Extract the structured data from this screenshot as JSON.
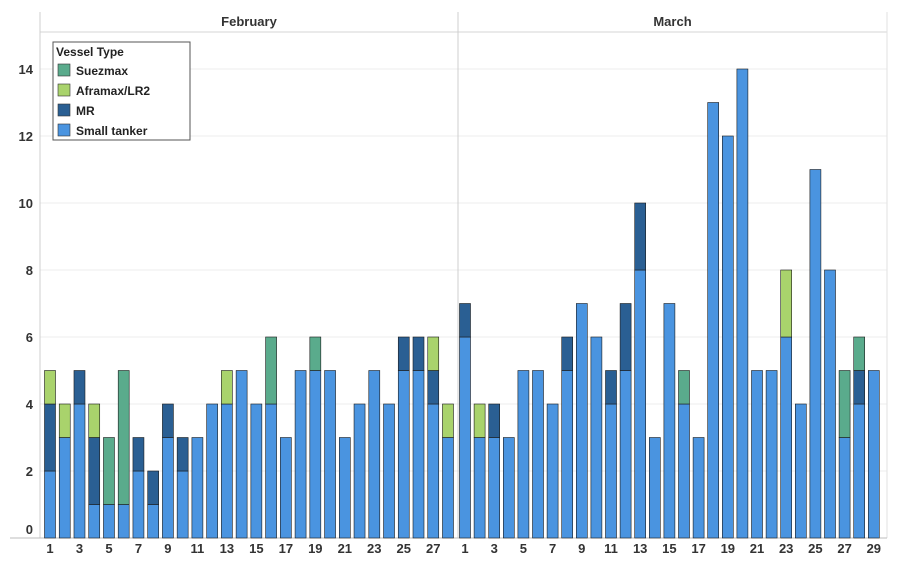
{
  "chart_data": {
    "type": "bar",
    "stacked": true,
    "ylim": [
      0,
      15
    ],
    "yticks": [
      0,
      2,
      4,
      6,
      8,
      10,
      12,
      14
    ],
    "grid": true,
    "legend": {
      "title": "Vessel Type",
      "position": "top-left",
      "items": [
        {
          "name": "Suezmax",
          "color": "#5aab8c"
        },
        {
          "name": "Aframax/LR2",
          "color": "#a9d36c"
        },
        {
          "name": "MR",
          "color": "#2a5f93"
        },
        {
          "name": "Small tanker",
          "color": "#4a94e0"
        }
      ]
    },
    "series_order": [
      "Small tanker",
      "MR",
      "Aframax/LR2",
      "Suezmax"
    ],
    "colors": {
      "Small tanker": "#4a94e0",
      "MR": "#2a5f93",
      "Aframax/LR2": "#a9d36c",
      "Suezmax": "#5aab8c"
    },
    "panels": [
      {
        "name": "February",
        "days": [
          1,
          2,
          3,
          4,
          5,
          6,
          7,
          8,
          9,
          10,
          11,
          12,
          13,
          14,
          15,
          16,
          17,
          18,
          19,
          20,
          21,
          22,
          23,
          24,
          25,
          26,
          27,
          28
        ],
        "tick_labels": [
          "1",
          "3",
          "5",
          "7",
          "9",
          "11",
          "13",
          "15",
          "17",
          "19",
          "21",
          "23",
          "25",
          "27"
        ],
        "series": [
          {
            "name": "Small tanker",
            "values": [
              2,
              3,
              4,
              1,
              1,
              1,
              2,
              1,
              3,
              2,
              3,
              4,
              4,
              5,
              4,
              4,
              3,
              5,
              5,
              5,
              3,
              4,
              5,
              4,
              5,
              5,
              4,
              3
            ]
          },
          {
            "name": "MR",
            "values": [
              2,
              0,
              1,
              2,
              0,
              0,
              1,
              1,
              1,
              1,
              0,
              0,
              0,
              0,
              0,
              0,
              0,
              0,
              0,
              0,
              0,
              0,
              0,
              0,
              1,
              1,
              1,
              0
            ]
          },
          {
            "name": "Aframax/LR2",
            "values": [
              1,
              1,
              0,
              1,
              0,
              0,
              0,
              0,
              0,
              0,
              0,
              0,
              1,
              0,
              0,
              0,
              0,
              0,
              0,
              0,
              0,
              0,
              0,
              0,
              0,
              0,
              1,
              1
            ]
          },
          {
            "name": "Suezmax",
            "values": [
              0,
              0,
              0,
              0,
              2,
              4,
              0,
              0,
              0,
              0,
              0,
              0,
              0,
              0,
              0,
              2,
              0,
              0,
              1,
              0,
              0,
              0,
              0,
              0,
              0,
              0,
              0,
              0
            ]
          }
        ]
      },
      {
        "name": "March",
        "days": [
          1,
          2,
          3,
          4,
          5,
          6,
          7,
          8,
          9,
          10,
          11,
          12,
          13,
          14,
          15,
          16,
          17,
          18,
          19,
          20,
          21,
          22,
          23,
          24,
          25,
          26,
          27,
          28,
          29
        ],
        "tick_labels": [
          "1",
          "3",
          "5",
          "7",
          "9",
          "11",
          "13",
          "15",
          "17",
          "19",
          "21",
          "23",
          "25",
          "27",
          "29"
        ],
        "series": [
          {
            "name": "Small tanker",
            "values": [
              6,
              3,
              3,
              3,
              5,
              5,
              4,
              5,
              7,
              6,
              4,
              5,
              8,
              3,
              7,
              4,
              3,
              13,
              12,
              14,
              5,
              5,
              6,
              4,
              11,
              8,
              3,
              4,
              5
            ]
          },
          {
            "name": "MR",
            "values": [
              1,
              0,
              1,
              0,
              0,
              0,
              0,
              1,
              0,
              0,
              1,
              2,
              2,
              0,
              0,
              0,
              0,
              0,
              0,
              0,
              0,
              0,
              0,
              0,
              0,
              0,
              0,
              1,
              0
            ]
          },
          {
            "name": "Aframax/LR2",
            "values": [
              0,
              1,
              0,
              0,
              0,
              0,
              0,
              0,
              0,
              0,
              0,
              0,
              0,
              0,
              0,
              0,
              0,
              0,
              0,
              0,
              0,
              0,
              2,
              0,
              0,
              0,
              0,
              0,
              0
            ]
          },
          {
            "name": "Suezmax",
            "values": [
              0,
              0,
              0,
              0,
              0,
              0,
              0,
              0,
              0,
              0,
              0,
              0,
              0,
              0,
              0,
              1,
              0,
              0,
              0,
              0,
              0,
              0,
              0,
              0,
              0,
              0,
              2,
              1,
              0
            ]
          }
        ]
      }
    ]
  }
}
